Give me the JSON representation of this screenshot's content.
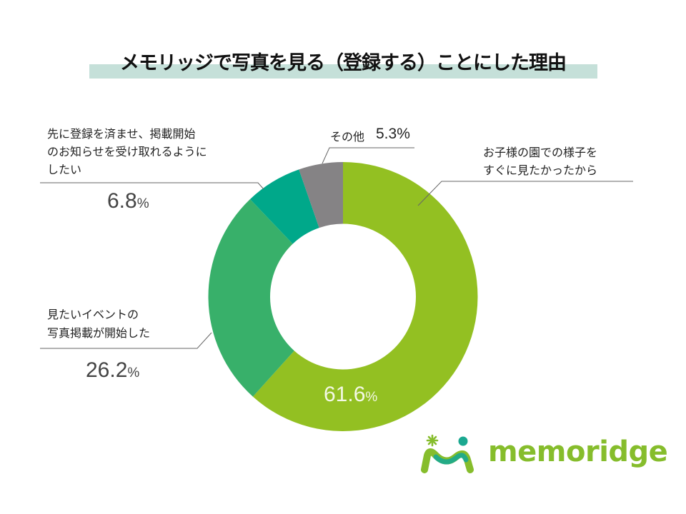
{
  "title": "メモリッジで写真を見る（登録する）ことにした理由",
  "colors": {
    "title_band": "#c5e0d9",
    "segment_1": "#93c022",
    "segment_2": "#38b06a",
    "segment_3": "#00a88a",
    "segment_4": "#858385",
    "leader_line": "#666666",
    "logo_green": "#86bd2c",
    "logo_teal": "#1aa890"
  },
  "labels": {
    "seg1_line1": "お子様の園での様子を",
    "seg1_line2": "すぐに見たかったから",
    "seg1_pct": "61.6",
    "seg2_line1": "見たいイベントの",
    "seg2_line2": "写真掲載が開始した",
    "seg2_pct": "26.2",
    "seg3_line1": "先に登録を済ませ、掲載開始",
    "seg3_line2": "のお知らせを受け取れるように",
    "seg3_line3": "したい",
    "seg3_pct": "6.8",
    "seg4_label": "その他",
    "seg4_pct": "5.3%",
    "pct_unit": "%"
  },
  "logo": {
    "text": "memoridge"
  },
  "chart_data": {
    "type": "pie",
    "subtype": "donut",
    "title": "メモリッジで写真を見る（登録する）ことにした理由",
    "categories": [
      "お子様の園での様子をすぐに見たかったから",
      "見たいイベントの写真掲載が開始した",
      "先に登録を済ませ、掲載開始のお知らせを受け取れるようにしたい",
      "その他"
    ],
    "values": [
      61.6,
      26.2,
      6.8,
      5.3
    ],
    "unit": "%",
    "colors": [
      "#93c022",
      "#38b06a",
      "#00a88a",
      "#858385"
    ],
    "start_angle": "12 o'clock",
    "direction": "clockwise",
    "legend": "none (leader-line labels)"
  }
}
